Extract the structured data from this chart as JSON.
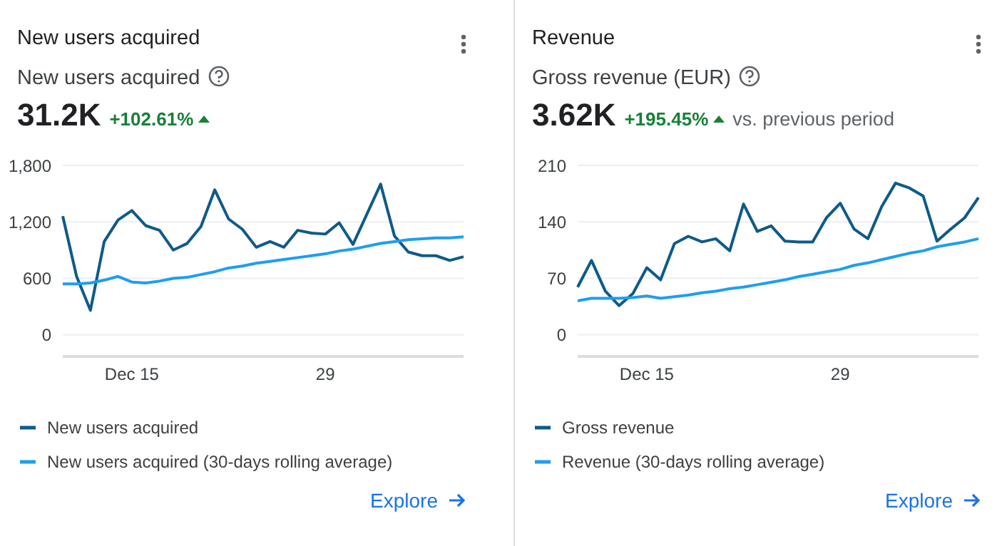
{
  "chart_data": [
    {
      "type": "line",
      "title": "New users acquired",
      "subtitle": "New users acquired",
      "annotations": [
        "31.2K",
        "+102.61%",
        "Explore"
      ],
      "categories": [
        null,
        null,
        null,
        null,
        null,
        "Dec 15",
        null,
        null,
        null,
        null,
        null,
        null,
        null,
        null,
        null,
        null,
        null,
        null,
        null,
        "29",
        null,
        null,
        null,
        null,
        null,
        null,
        null,
        null,
        null,
        null
      ],
      "series": [
        {
          "name": "New users acquired",
          "color": "#0e5a8a",
          "values": [
            1260,
            620,
            260,
            990,
            1220,
            1320,
            1160,
            1110,
            900,
            970,
            1150,
            1540,
            1230,
            1120,
            930,
            990,
            930,
            1110,
            1080,
            1070,
            1190,
            960,
            1280,
            1600,
            1050,
            880,
            840,
            840,
            790,
            830
          ]
        },
        {
          "name": "New users acquired (30-days rolling average)",
          "color": "#1e9ef0",
          "values": [
            540,
            540,
            550,
            580,
            620,
            560,
            550,
            570,
            600,
            610,
            640,
            670,
            710,
            730,
            760,
            780,
            800,
            820,
            840,
            860,
            890,
            910,
            940,
            970,
            990,
            1010,
            1020,
            1030,
            1030,
            1040
          ]
        }
      ],
      "ylim": [
        -230,
        1800
      ],
      "yticks": [
        0,
        600,
        {
          "value": 1200,
          "label": "1,200"
        },
        {
          "value": 1800,
          "label": "1,800"
        }
      ],
      "grid": "y",
      "legend": "bottom"
    },
    {
      "type": "line",
      "title": "Revenue",
      "subtitle": "Gross revenue (EUR)",
      "annotations": [
        "3.62K",
        "+195.45%",
        "vs. previous period",
        "Explore"
      ],
      "categories": [
        null,
        null,
        null,
        null,
        null,
        "Dec 15",
        null,
        null,
        null,
        null,
        null,
        null,
        null,
        null,
        null,
        null,
        null,
        null,
        null,
        "29",
        null,
        null,
        null,
        null,
        null,
        null,
        null,
        null,
        null,
        null
      ],
      "series": [
        {
          "name": "Gross revenue",
          "color": "#0e5a8a",
          "values": [
            59,
            92,
            54,
            36,
            51,
            83,
            68,
            113,
            122,
            115,
            119,
            104,
            162,
            128,
            135,
            116,
            115,
            115,
            145,
            163,
            131,
            119,
            159,
            188,
            182,
            172,
            116,
            131,
            145,
            170
          ]
        },
        {
          "name": "Revenue (30-days rolling average)",
          "color": "#1e9ef0",
          "values": [
            42,
            45,
            45,
            45,
            46,
            48,
            45,
            47,
            49,
            52,
            54,
            57,
            59,
            62,
            65,
            68,
            72,
            75,
            78,
            81,
            86,
            89,
            93,
            97,
            101,
            104,
            109,
            112,
            115,
            119
          ]
        }
      ],
      "ylim": [
        -27,
        210
      ],
      "yticks": [
        0,
        70,
        140,
        210
      ],
      "grid": "y",
      "legend": "bottom"
    }
  ]
}
